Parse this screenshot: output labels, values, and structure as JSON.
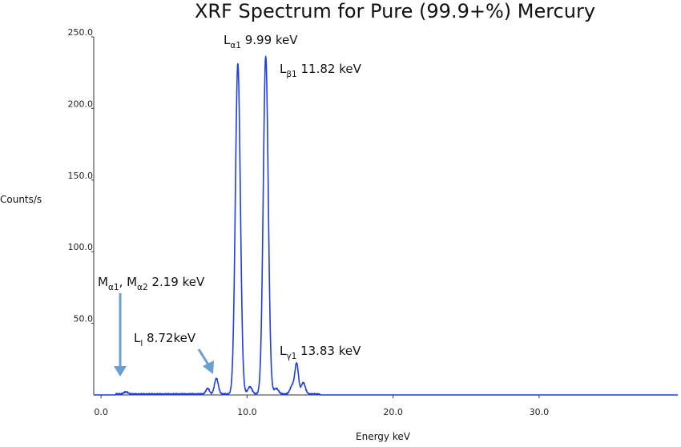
{
  "chart_data": {
    "type": "line",
    "title": "XRF Spectrum for Pure (99.9+%) Mercury",
    "xlabel": "Energy keV",
    "ylabel": "Counts/s",
    "xlim": [
      -0.5,
      39.5
    ],
    "ylim": [
      0,
      250
    ],
    "x_ticks": [
      0,
      10,
      20,
      30
    ],
    "x_tick_labels": [
      "0.0",
      "10.0",
      "20.0",
      "30.0"
    ],
    "y_ticks": [
      50,
      100,
      150,
      200,
      250
    ],
    "y_tick_labels": [
      "50.0",
      "100.0",
      "150.0",
      "200.0",
      "250.0"
    ],
    "grid": false,
    "legend": "none",
    "series_color": "#1f3de0",
    "arrow_color": "#6a9fd0",
    "peaks": [
      {
        "center": 1.7,
        "height": 1.5,
        "width": 0.15
      },
      {
        "center": 7.3,
        "height": 4,
        "width": 0.12
      },
      {
        "center": 7.9,
        "height": 11,
        "width": 0.13
      },
      {
        "center": 9.37,
        "height": 231,
        "width": 0.17
      },
      {
        "center": 10.2,
        "height": 5,
        "width": 0.15
      },
      {
        "center": 11.28,
        "height": 236,
        "width": 0.17
      },
      {
        "center": 12.0,
        "height": 4,
        "width": 0.15
      },
      {
        "center": 13.1,
        "height": 6,
        "width": 0.15
      },
      {
        "center": 13.4,
        "height": 21,
        "width": 0.12
      },
      {
        "center": 13.85,
        "height": 8,
        "width": 0.14
      }
    ],
    "annotations": [
      {
        "main": "L",
        "sub": "α1",
        "rest": "  9.99 keV"
      },
      {
        "main": "L",
        "sub": "β1",
        "rest": "  11.82 keV"
      },
      {
        "main": "L",
        "sub": "γ1",
        "rest": "  13.83 keV"
      },
      {
        "main": "M",
        "sub": "α1",
        "rest": ", M",
        "sub2": "α2",
        "rest2": " 2.19 keV"
      },
      {
        "main": "L",
        "sub": "l",
        "rest": "  8.72keV"
      }
    ]
  }
}
